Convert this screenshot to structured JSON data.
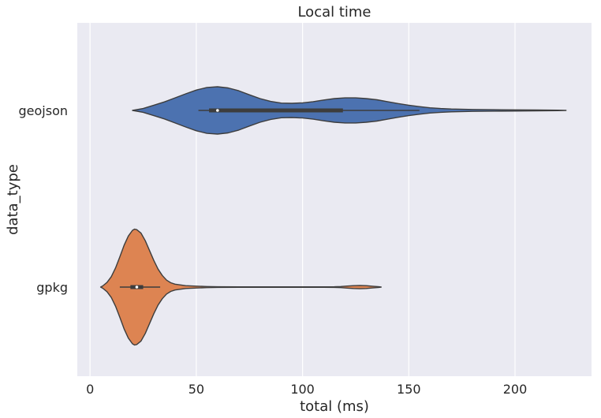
{
  "chart_data": {
    "type": "violin",
    "title": "Local time",
    "xlabel": "total (ms)",
    "ylabel": "data_type",
    "xlim": [
      -6,
      236
    ],
    "x_ticks": [
      0,
      50,
      100,
      150,
      200
    ],
    "grid": true,
    "categories": [
      "geojson",
      "gpkg"
    ],
    "series": [
      {
        "name": "geojson",
        "color": "#4c72b0",
        "min": 20,
        "max": 224,
        "q1": 56,
        "median": 60,
        "q3": 119,
        "whisker_low": 51,
        "whisker_high": 155,
        "density_profile": [
          [
            20,
            0.0
          ],
          [
            25,
            0.08
          ],
          [
            30,
            0.22
          ],
          [
            35,
            0.36
          ],
          [
            40,
            0.53
          ],
          [
            45,
            0.7
          ],
          [
            50,
            0.86
          ],
          [
            55,
            0.97
          ],
          [
            60,
            1.0
          ],
          [
            65,
            0.95
          ],
          [
            70,
            0.83
          ],
          [
            75,
            0.66
          ],
          [
            80,
            0.5
          ],
          [
            85,
            0.38
          ],
          [
            90,
            0.31
          ],
          [
            95,
            0.3
          ],
          [
            100,
            0.32
          ],
          [
            105,
            0.37
          ],
          [
            110,
            0.44
          ],
          [
            115,
            0.5
          ],
          [
            120,
            0.53
          ],
          [
            125,
            0.53
          ],
          [
            130,
            0.5
          ],
          [
            135,
            0.45
          ],
          [
            140,
            0.37
          ],
          [
            145,
            0.29
          ],
          [
            150,
            0.22
          ],
          [
            155,
            0.16
          ],
          [
            160,
            0.11
          ],
          [
            165,
            0.08
          ],
          [
            170,
            0.06
          ],
          [
            180,
            0.04
          ],
          [
            190,
            0.03
          ],
          [
            200,
            0.025
          ],
          [
            210,
            0.02
          ],
          [
            220,
            0.01
          ],
          [
            224,
            0.0
          ]
        ]
      },
      {
        "name": "gpkg",
        "color": "#dd8452",
        "min": 5,
        "max": 137,
        "q1": 19,
        "median": 22,
        "q3": 25,
        "whisker_low": 14,
        "whisker_high": 33,
        "density_profile": [
          [
            5,
            0.0
          ],
          [
            6,
            0.02
          ],
          [
            8,
            0.08
          ],
          [
            10,
            0.18
          ],
          [
            12,
            0.33
          ],
          [
            14,
            0.52
          ],
          [
            16,
            0.72
          ],
          [
            18,
            0.88
          ],
          [
            20,
            0.98
          ],
          [
            21,
            1.0
          ],
          [
            22,
            0.99
          ],
          [
            24,
            0.93
          ],
          [
            26,
            0.8
          ],
          [
            28,
            0.63
          ],
          [
            30,
            0.46
          ],
          [
            32,
            0.31
          ],
          [
            34,
            0.2
          ],
          [
            36,
            0.12
          ],
          [
            38,
            0.075
          ],
          [
            40,
            0.05
          ],
          [
            45,
            0.025
          ],
          [
            50,
            0.016
          ],
          [
            55,
            0.01
          ],
          [
            60,
            0.005
          ],
          [
            70,
            0.004
          ],
          [
            80,
            0.004
          ],
          [
            90,
            0.004
          ],
          [
            100,
            0.004
          ],
          [
            110,
            0.004
          ],
          [
            115,
            0.005
          ],
          [
            118,
            0.01
          ],
          [
            121,
            0.018
          ],
          [
            124,
            0.025
          ],
          [
            127,
            0.028
          ],
          [
            130,
            0.025
          ],
          [
            133,
            0.015
          ],
          [
            136,
            0.005
          ],
          [
            137,
            0.0
          ]
        ]
      }
    ]
  },
  "colors": {
    "plot_background": "#eaeaf2",
    "grid": "#ffffff",
    "outline": "#3d3d3d"
  }
}
